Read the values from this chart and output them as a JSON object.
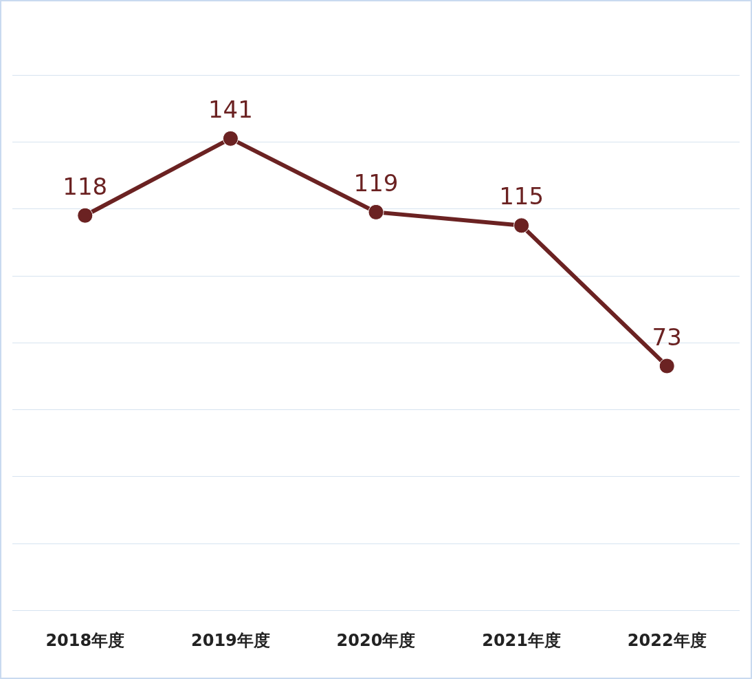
{
  "chart_data": {
    "type": "line",
    "categories": [
      "2018年度",
      "2019年度",
      "2020年度",
      "2021年度",
      "2022年度"
    ],
    "series": [
      {
        "color": "#6b2222",
        "values": [
          118,
          141,
          119,
          115,
          73
        ]
      }
    ],
    "ylim": [
      0,
      160
    ],
    "yticks": [
      {
        "value": 0,
        "label": null
      },
      {
        "value": 20,
        "label": null
      },
      {
        "value": 40,
        "label": null
      },
      {
        "value": 60,
        "label": null
      },
      {
        "value": 80,
        "label": null
      },
      {
        "value": 100,
        "label": null
      },
      {
        "value": 120,
        "label": null
      },
      {
        "value": 140,
        "label": null
      },
      {
        "value": 160,
        "label": null
      }
    ],
    "tick_labels": "x",
    "grid": "y",
    "marker": "circle",
    "line_style": "solid",
    "data_labels": true
  }
}
